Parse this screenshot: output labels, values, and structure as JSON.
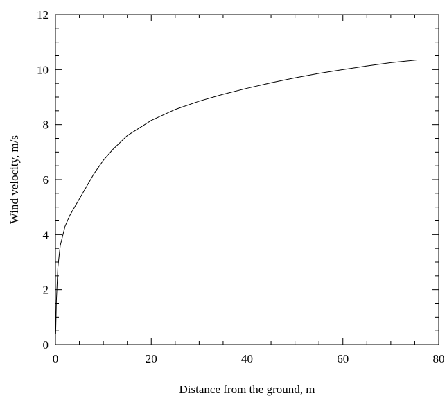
{
  "chart_data": {
    "type": "line",
    "title": "",
    "xlabel": "Distance from the ground, m",
    "ylabel": "Wind velocity, m/s",
    "xlim": [
      0,
      80
    ],
    "ylim": [
      0,
      12
    ],
    "x_ticks": [
      0,
      20,
      40,
      60,
      80
    ],
    "y_ticks": [
      0,
      2,
      4,
      6,
      8,
      10,
      12
    ],
    "grid": false,
    "series": [
      {
        "x": [
          0.05,
          0.2,
          0.5,
          1,
          2,
          3,
          4,
          5,
          6,
          8,
          10,
          12,
          15,
          20,
          25,
          30,
          35,
          40,
          45,
          50,
          55,
          60,
          65,
          70,
          75.5
        ],
        "y": [
          0.4,
          1.6,
          2.8,
          3.6,
          4.3,
          4.7,
          5.0,
          5.3,
          5.6,
          6.2,
          6.7,
          7.1,
          7.6,
          8.15,
          8.55,
          8.85,
          9.1,
          9.32,
          9.52,
          9.7,
          9.86,
          10.0,
          10.13,
          10.25,
          10.35
        ]
      }
    ],
    "colors": {
      "line": "#000000",
      "axes": "#000000"
    }
  }
}
